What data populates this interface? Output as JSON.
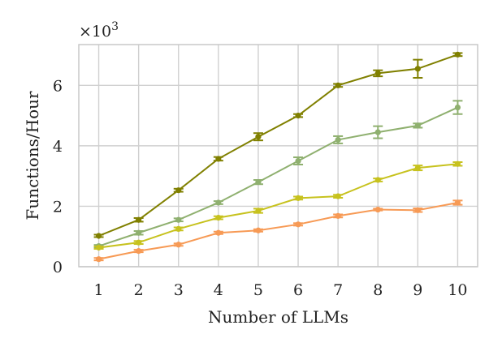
{
  "chart_data": {
    "type": "line",
    "title": "",
    "xlabel": "Number of LLMs",
    "ylabel": "Functions/Hour",
    "y_multiplier_label": "×10",
    "y_multiplier_exponent": "3",
    "x": [
      1,
      2,
      3,
      4,
      5,
      6,
      7,
      8,
      9,
      10
    ],
    "x_ticks": [
      "1",
      "2",
      "3",
      "4",
      "5",
      "6",
      "7",
      "8",
      "9",
      "10"
    ],
    "y_ticks": [
      "0",
      "2",
      "4",
      "6"
    ],
    "y_tick_values": [
      0,
      2,
      4,
      6
    ],
    "xlim": [
      0.5,
      10.5
    ],
    "ylim": [
      0,
      7.35
    ],
    "grid": true,
    "legend": "none",
    "series": [
      {
        "color": "#808000",
        "marker": "circle",
        "values": [
          1.02,
          1.55,
          2.53,
          3.57,
          4.3,
          5.0,
          6.0,
          6.4,
          6.55,
          7.02
        ],
        "errors": [
          0.04,
          0.06,
          0.05,
          0.06,
          0.12,
          0.05,
          0.05,
          0.1,
          0.3,
          0.05
        ]
      },
      {
        "color": "#8fb06f",
        "marker": "circle",
        "values": [
          0.68,
          1.12,
          1.55,
          2.12,
          2.8,
          3.5,
          4.2,
          4.45,
          4.67,
          5.27
        ],
        "errors": [
          0.04,
          0.06,
          0.05,
          0.05,
          0.07,
          0.12,
          0.12,
          0.2,
          0.07,
          0.22
        ]
      },
      {
        "color": "#c7c21e",
        "marker": "circle",
        "values": [
          0.63,
          0.8,
          1.25,
          1.62,
          1.85,
          2.27,
          2.33,
          2.87,
          3.27,
          3.4
        ],
        "errors": [
          0.04,
          0.05,
          0.05,
          0.05,
          0.07,
          0.05,
          0.05,
          0.05,
          0.08,
          0.06
        ]
      },
      {
        "color": "#f79a55",
        "marker": "circle",
        "values": [
          0.25,
          0.52,
          0.73,
          1.12,
          1.2,
          1.4,
          1.68,
          1.89,
          1.87,
          2.12
        ],
        "errors": [
          0.04,
          0.04,
          0.04,
          0.04,
          0.04,
          0.04,
          0.05,
          0.03,
          0.06,
          0.07
        ]
      }
    ]
  }
}
